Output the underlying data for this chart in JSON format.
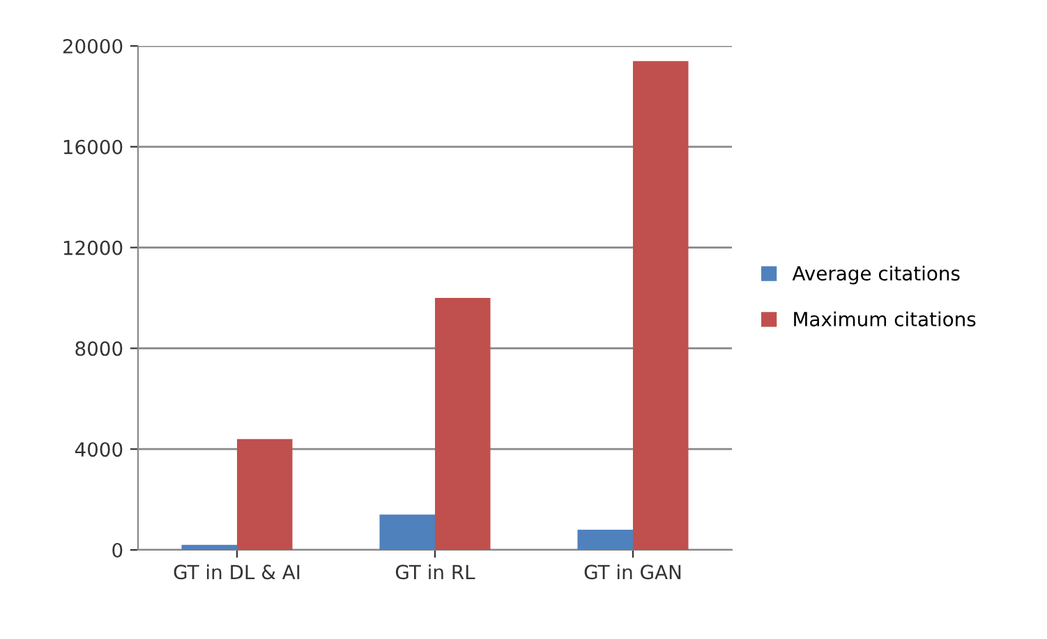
{
  "chart_data": {
    "type": "bar",
    "categories": [
      "GT in DL & AI",
      "GT in RL",
      "GT in GAN"
    ],
    "series": [
      {
        "name": "Average citations",
        "color": "#4f81bd",
        "values": [
          200,
          1400,
          800
        ]
      },
      {
        "name": "Maximum citations",
        "color": "#c0504d",
        "values": [
          4400,
          10000,
          19400
        ]
      }
    ],
    "ylim": [
      0,
      20000
    ],
    "yticks": [
      0,
      4000,
      8000,
      12000,
      16000,
      20000
    ],
    "grid": "y",
    "legend": "right"
  }
}
